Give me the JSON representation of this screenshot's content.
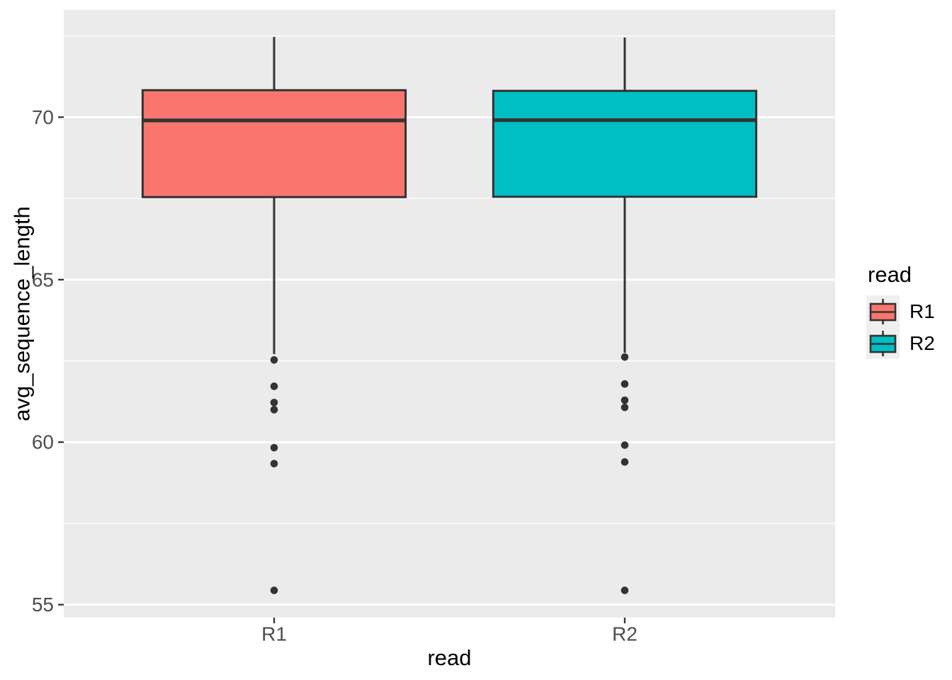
{
  "chart_data": {
    "type": "boxplot",
    "title": "",
    "xlabel": "read",
    "ylabel": "avg_sequence_length",
    "categories": [
      "R1",
      "R2"
    ],
    "ylim": [
      54.6,
      73.3
    ],
    "yticks": [
      55,
      60,
      65,
      70
    ],
    "yticks_minor": [
      57.5,
      62.5,
      67.5,
      72.5
    ],
    "grid": "white major+minor horizontal gridlines on grey panel",
    "panel_bg": "#EBEBEB",
    "outline_color": "#333333",
    "tick_label_color": "#4D4D4D",
    "legend": {
      "title": "read",
      "position": "right",
      "key_bg": "#EFEFEF",
      "entries": [
        "R1",
        "R2"
      ]
    },
    "series": [
      {
        "name": "R1",
        "color": "#F8766D",
        "stats": {
          "whisker_low": 62.71,
          "q1": 67.54,
          "median": 69.9,
          "q3": 70.83,
          "whisker_high": 72.47,
          "outliers": [
            62.53,
            61.72,
            61.22,
            61.0,
            59.83,
            59.34,
            55.44
          ]
        }
      },
      {
        "name": "R2",
        "color": "#00BFC4",
        "stats": {
          "whisker_low": 62.75,
          "q1": 67.55,
          "median": 69.91,
          "q3": 70.81,
          "whisker_high": 72.45,
          "outliers": [
            62.62,
            61.79,
            61.29,
            61.07,
            59.91,
            59.39,
            55.44
          ]
        }
      }
    ]
  }
}
